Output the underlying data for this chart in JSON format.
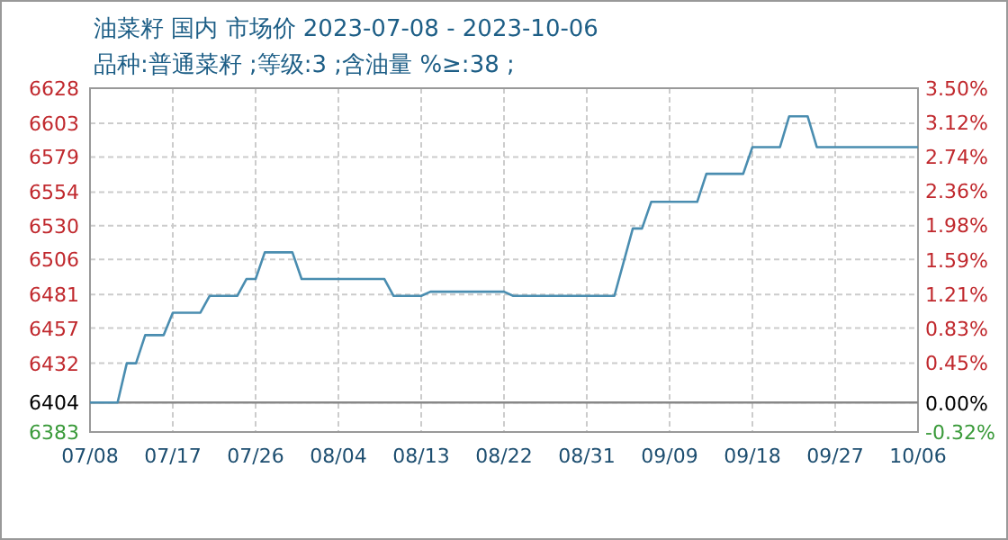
{
  "chart_data": {
    "type": "step",
    "title": "油菜籽 国内 市场价 2023-07-08 - 2023-10-06",
    "subtitle": "品种:普通菜籽 ;等级:3 ;含油量 %≥:38 ;",
    "x": [
      "2023-07-08",
      "2023-07-11",
      "2023-07-12",
      "2023-07-13",
      "2023-07-14",
      "2023-07-16",
      "2023-07-17",
      "2023-07-20",
      "2023-07-21",
      "2023-07-24",
      "2023-07-25",
      "2023-07-26",
      "2023-07-27",
      "2023-07-30",
      "2023-07-31",
      "2023-08-09",
      "2023-08-10",
      "2023-08-13",
      "2023-08-14",
      "2023-08-22",
      "2023-08-23",
      "2023-09-03",
      "2023-09-05",
      "2023-09-06",
      "2023-09-07",
      "2023-09-12",
      "2023-09-13",
      "2023-09-17",
      "2023-09-18",
      "2023-09-21",
      "2023-09-22",
      "2023-09-24",
      "2023-09-25",
      "2023-10-06"
    ],
    "series": [
      {
        "color": "#4a8db0",
        "values": [
          6404,
          6404,
          6432,
          6432,
          6452,
          6452,
          6468,
          6468,
          6480,
          6480,
          6492,
          6492,
          6511,
          6511,
          6492,
          6492,
          6480,
          6480,
          6483,
          6483,
          6480,
          6480,
          6528,
          6528,
          6547,
          6547,
          6567,
          6567,
          6586,
          6586,
          6608,
          6608,
          6586,
          6586
        ]
      }
    ],
    "xlim": [
      "2023-07-08",
      "2023-10-06"
    ],
    "xticks": [
      {
        "value": "2023-07-08",
        "label": "07/08"
      },
      {
        "value": "2023-07-17",
        "label": "07/17"
      },
      {
        "value": "2023-07-26",
        "label": "07/26"
      },
      {
        "value": "2023-08-04",
        "label": "08/04"
      },
      {
        "value": "2023-08-13",
        "label": "08/13"
      },
      {
        "value": "2023-08-22",
        "label": "08/22"
      },
      {
        "value": "2023-08-31",
        "label": "08/31"
      },
      {
        "value": "2023-09-09",
        "label": "09/09"
      },
      {
        "value": "2023-09-18",
        "label": "09/18"
      },
      {
        "value": "2023-09-27",
        "label": "09/27"
      },
      {
        "value": "2023-10-06",
        "label": "10/06"
      }
    ],
    "ylim": [
      6383,
      6628
    ],
    "yticks": [
      6383,
      6404,
      6432,
      6457,
      6481,
      6506,
      6530,
      6554,
      6579,
      6603,
      6628
    ],
    "y2lim": [
      -0.32,
      3.5
    ],
    "y2ticks": [
      {
        "value": -0.32,
        "label": "-0.32%"
      },
      {
        "value": 0,
        "label": "0.00%"
      },
      {
        "value": 0.45,
        "label": "0.45%"
      },
      {
        "value": 0.83,
        "label": "0.83%"
      },
      {
        "value": 1.21,
        "label": "1.21%"
      },
      {
        "value": 1.59,
        "label": "1.59%"
      },
      {
        "value": 1.98,
        "label": "1.98%"
      },
      {
        "value": 2.36,
        "label": "2.36%"
      },
      {
        "value": 2.74,
        "label": "2.74%"
      },
      {
        "value": 3.12,
        "label": "3.12%"
      },
      {
        "value": 3.5,
        "label": "3.50%"
      }
    ],
    "ref_lines": [
      {
        "axis": "y",
        "value": 6404,
        "color": "#888888"
      }
    ],
    "grid": true,
    "line_style": "solid",
    "marker": "none"
  }
}
